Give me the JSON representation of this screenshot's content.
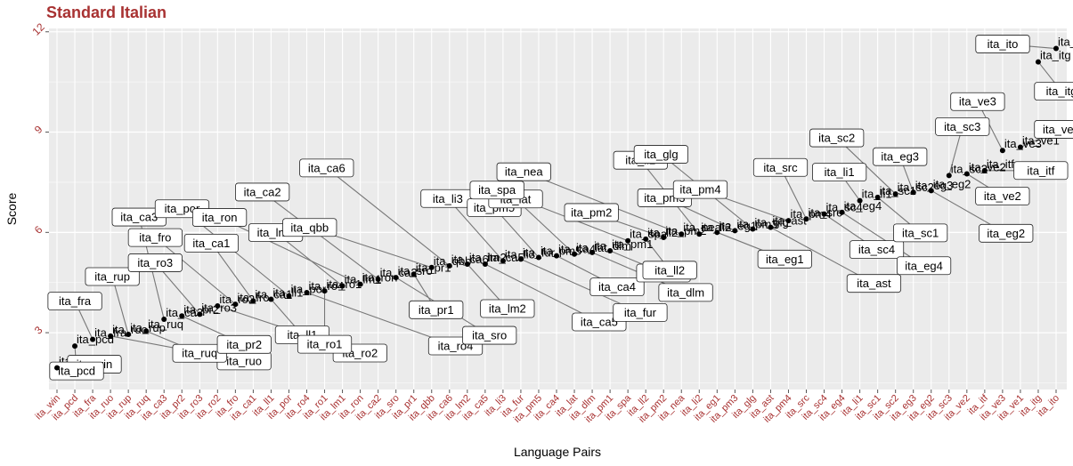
{
  "chart_data": {
    "type": "scatter",
    "title": "Standard Italian",
    "xlabel": "Language Pairs",
    "ylabel": "Score",
    "ylim": [
      1.3,
      12.1
    ],
    "yticks": [
      3,
      6,
      9,
      12
    ],
    "grid": true,
    "legend": "none",
    "colors": {
      "title": "#a83232",
      "ticks": "#a83232",
      "panel": "#ebebeb",
      "grid": "#ffffff",
      "point": "#000000"
    },
    "categories": [
      "ita_win",
      "ita_pcd",
      "ita_fra",
      "ita_ruo",
      "ita_rup",
      "ita_ruq",
      "ita_ca3",
      "ita_pr2",
      "ita_ro3",
      "ita_ro2",
      "ita_fro",
      "ita_ca1",
      "ita_ll1",
      "ita_por",
      "ita_ro4",
      "ita_ro1",
      "ita_lm1",
      "ita_ron",
      "ita_ca2",
      "ita_sro",
      "ita_pr1",
      "ita_qbb",
      "ita_ca6",
      "ita_lm2",
      "ita_ca5",
      "ita_li3",
      "ita_fur",
      "ita_pm5",
      "ita_ca4",
      "ita_lat",
      "ita_dlm",
      "ita_pm1",
      "ita_spa",
      "ita_ll2",
      "ita_pm2",
      "ita_nea",
      "ita_li2",
      "ita_eg1",
      "ita_pm3",
      "ita_glg",
      "ita_ast",
      "ita_pm4",
      "ita_src",
      "ita_sc4",
      "ita_eg4",
      "ita_li1",
      "ita_sc1",
      "ita_sc2",
      "ita_eg3",
      "ita_eg2",
      "ita_sc3",
      "ita_ve2",
      "ita_itf",
      "ita_ve3",
      "ita_ve1",
      "ita_itg",
      "ita_ito"
    ],
    "values": [
      1.95,
      2.6,
      2.8,
      2.9,
      2.95,
      3.05,
      3.4,
      3.5,
      3.55,
      3.8,
      3.85,
      3.95,
      4.0,
      4.1,
      4.2,
      4.25,
      4.4,
      4.45,
      4.6,
      4.65,
      4.75,
      4.95,
      5.0,
      5.05,
      5.05,
      5.15,
      5.2,
      5.25,
      5.3,
      5.35,
      5.4,
      5.45,
      5.75,
      5.8,
      5.85,
      5.95,
      5.95,
      6.0,
      6.05,
      6.1,
      6.15,
      6.35,
      6.4,
      6.55,
      6.6,
      6.95,
      7.05,
      7.15,
      7.2,
      7.25,
      7.7,
      7.75,
      7.85,
      8.45,
      8.55,
      11.1,
      11.5
    ]
  }
}
